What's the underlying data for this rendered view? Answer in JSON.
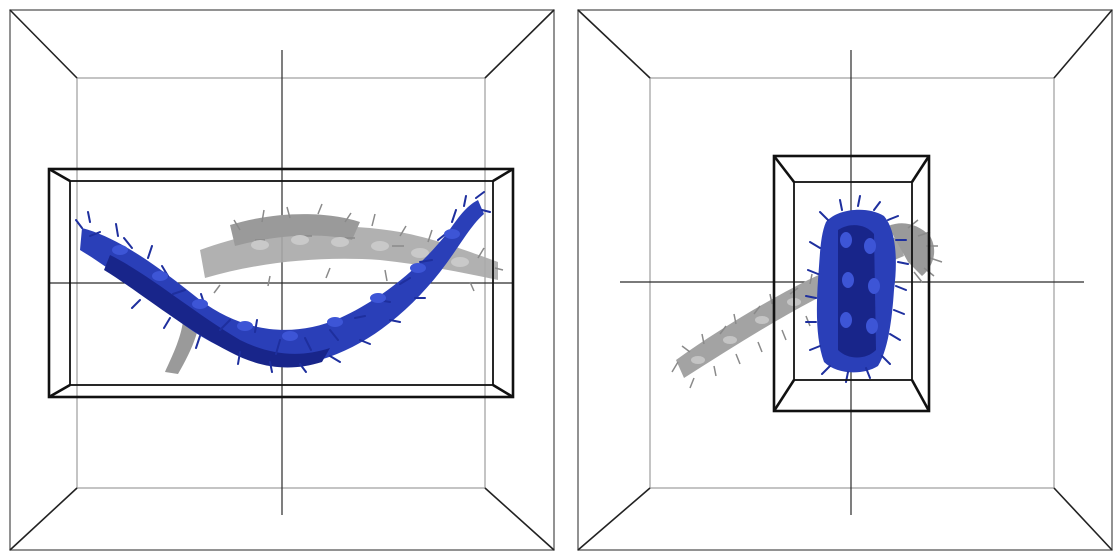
{
  "colors": {
    "background": "#ffffff",
    "outer_box": "#6e6e6e",
    "box_edge": "#222222",
    "inner_box": "#111111",
    "axis": "#2a2a2a",
    "protein_blue": "#2a3fb8",
    "protein_blue_dark": "#18258a",
    "protein_gray": "#a8a8a8",
    "protein_gray_dark": "#7d7d7d"
  },
  "panels": [
    {
      "view": "side-view",
      "box_shape": "wide",
      "protein_colors": [
        "blue",
        "gray"
      ]
    },
    {
      "view": "end-view",
      "box_shape": "tall",
      "protein_colors": [
        "blue",
        "gray"
      ]
    }
  ]
}
